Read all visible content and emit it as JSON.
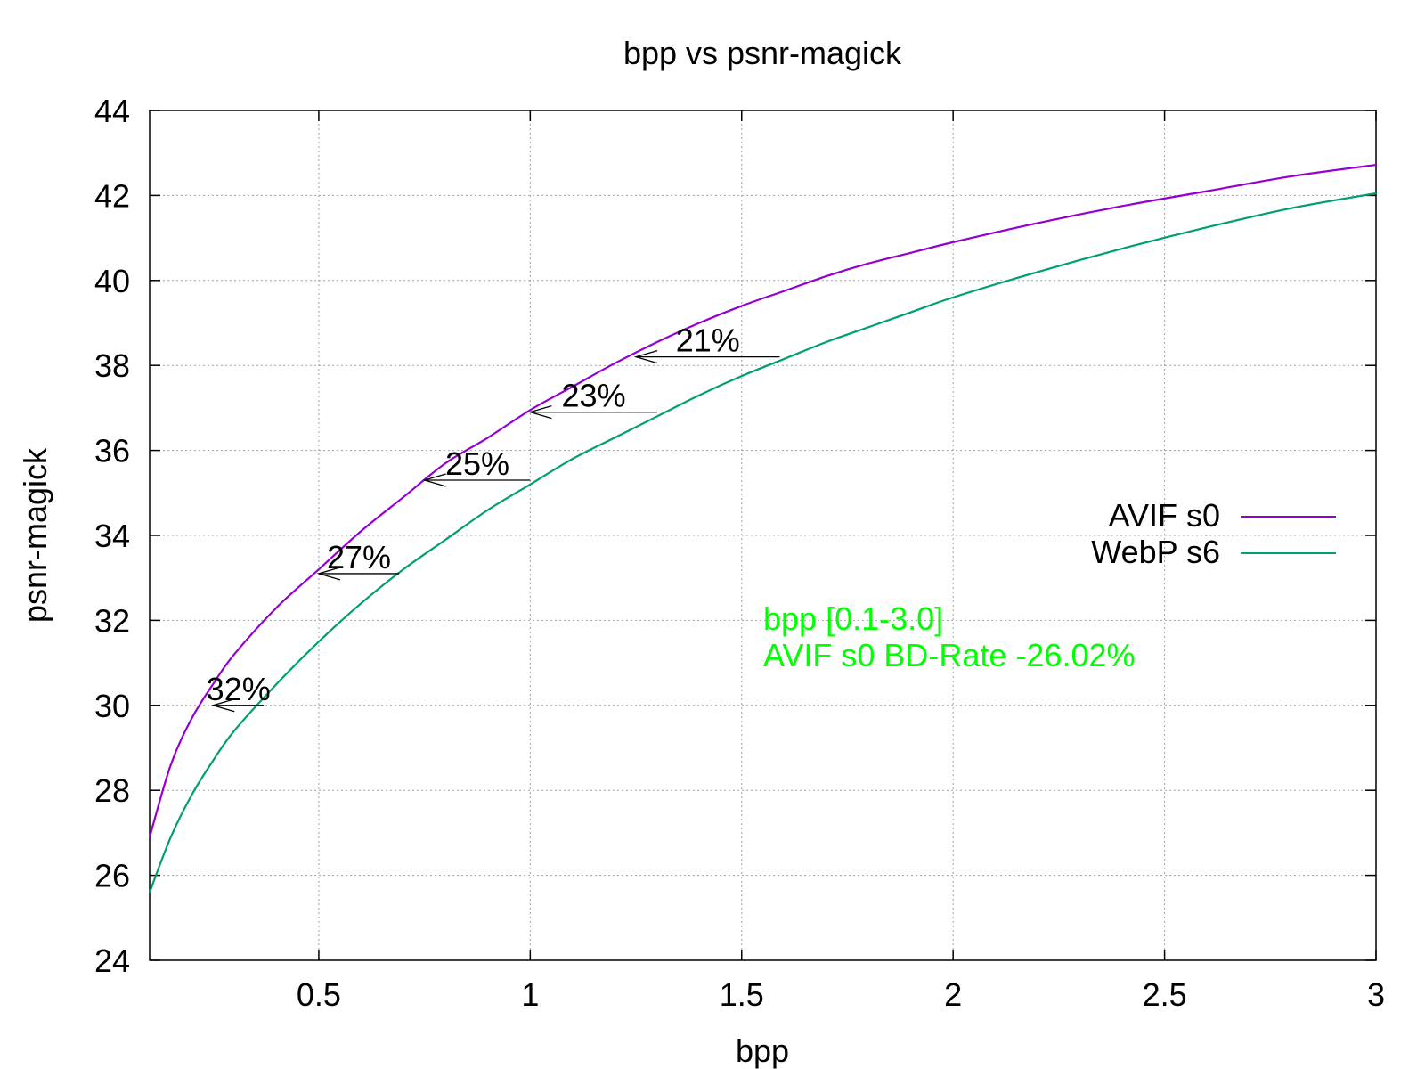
{
  "chart_data": {
    "type": "line",
    "title": "bpp vs psnr-magick",
    "xlabel": "bpp",
    "ylabel": "psnr-magick",
    "xlim": [
      0.1,
      3.0
    ],
    "ylim": [
      24,
      44
    ],
    "x_ticks": [
      0.5,
      1,
      1.5,
      2,
      2.5,
      3
    ],
    "x_tick_labels": [
      "0.5",
      "1",
      "1.5",
      "2",
      "2.5",
      "3"
    ],
    "y_ticks": [
      24,
      26,
      28,
      30,
      32,
      34,
      36,
      38,
      40,
      42,
      44
    ],
    "y_tick_labels": [
      "24",
      "26",
      "28",
      "30",
      "32",
      "34",
      "36",
      "38",
      "40",
      "42",
      "44"
    ],
    "grid": true,
    "legend_position": "right",
    "series": [
      {
        "name": "AVIF s0",
        "color": "#9400d3",
        "x": [
          0.1,
          0.15,
          0.2,
          0.25,
          0.3,
          0.4,
          0.5,
          0.6,
          0.7,
          0.8,
          0.9,
          1.0,
          1.1,
          1.2,
          1.3,
          1.4,
          1.5,
          1.6,
          1.7,
          1.8,
          1.9,
          2.0,
          2.2,
          2.4,
          2.6,
          2.8,
          3.0
        ],
        "y": [
          26.9,
          28.6,
          29.7,
          30.5,
          31.2,
          32.3,
          33.2,
          34.1,
          34.9,
          35.7,
          36.3,
          36.95,
          37.5,
          38.05,
          38.55,
          39.0,
          39.4,
          39.75,
          40.1,
          40.4,
          40.65,
          40.9,
          41.35,
          41.75,
          42.1,
          42.45,
          42.72
        ]
      },
      {
        "name": "WebP s6",
        "color": "#009e73",
        "x": [
          0.1,
          0.15,
          0.2,
          0.25,
          0.3,
          0.4,
          0.5,
          0.6,
          0.7,
          0.8,
          0.9,
          1.0,
          1.1,
          1.2,
          1.3,
          1.4,
          1.5,
          1.6,
          1.7,
          1.8,
          1.9,
          2.0,
          2.2,
          2.4,
          2.6,
          2.8,
          3.0
        ],
        "y": [
          25.6,
          26.9,
          27.9,
          28.7,
          29.4,
          30.5,
          31.5,
          32.4,
          33.2,
          33.9,
          34.6,
          35.2,
          35.8,
          36.3,
          36.8,
          37.3,
          37.75,
          38.15,
          38.55,
          38.9,
          39.25,
          39.6,
          40.2,
          40.75,
          41.25,
          41.7,
          42.05
        ]
      }
    ],
    "annotations": [
      {
        "text": "32%",
        "y": 30.0,
        "x_from": 0.37,
        "x_to": 0.25
      },
      {
        "text": "27%",
        "y": 33.1,
        "x_from": 0.69,
        "x_to": 0.5
      },
      {
        "text": "25%",
        "y": 35.3,
        "x_from": 1.0,
        "x_to": 0.75
      },
      {
        "text": "23%",
        "y": 36.9,
        "x_from": 1.3,
        "x_to": 1.0
      },
      {
        "text": "21%",
        "y": 38.2,
        "x_from": 1.59,
        "x_to": 1.25
      }
    ],
    "note": {
      "lines": [
        "bpp [0.1-3.0]",
        "AVIF s0 BD-Rate -26.02%"
      ],
      "color": "#00ff00"
    }
  }
}
